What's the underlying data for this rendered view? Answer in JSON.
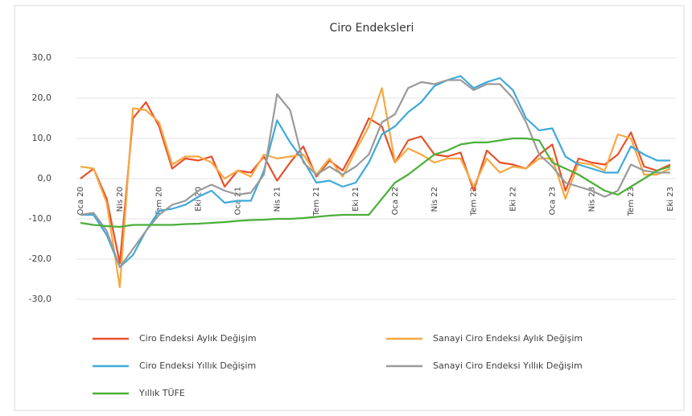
{
  "chart_data": {
    "type": "line",
    "title": "Ciro Endeksleri",
    "categories": [
      "Oca 20",
      null,
      null,
      "Nis 20",
      null,
      null,
      "Tem 20",
      null,
      null,
      "Eki 20",
      null,
      null,
      "Oca 21",
      null,
      null,
      "Nis 21",
      null,
      null,
      "Tem 21",
      null,
      null,
      "Eki 21",
      null,
      null,
      "Oca 22",
      null,
      null,
      "Nis 22",
      null,
      null,
      "Tem 22",
      null,
      null,
      "Eki 22",
      null,
      null,
      "Oca 23",
      null,
      null,
      "Nis 23",
      null,
      null,
      "Tem 23",
      null,
      null,
      "Eki 23"
    ],
    "series": [
      {
        "name": "Ciro Endeksi Aylık Değişim",
        "color": "#e8502a",
        "values": [
          0,
          2.5,
          -5,
          -21,
          15,
          19,
          13,
          2.5,
          5,
          4.5,
          5.5,
          -2,
          2,
          1.5,
          5.5,
          -0.5,
          4,
          8,
          0.5,
          4.5,
          2,
          8,
          15,
          13,
          4,
          9.5,
          10.5,
          6,
          5.5,
          6.5,
          -3,
          7,
          4,
          3.5,
          2.5,
          6,
          8.5,
          -3,
          5,
          4,
          3.5,
          6,
          11.5,
          3,
          2,
          3.5
        ]
      },
      {
        "name": "Sanayi Ciro Endeksi Aylık Değişim",
        "color": "#f5a842",
        "values": [
          3,
          2.5,
          -6,
          -27,
          17.5,
          17,
          14,
          3.5,
          5.5,
          5.5,
          4,
          0,
          2,
          0.5,
          6,
          5,
          5.5,
          6,
          1,
          5,
          0.5,
          7,
          13,
          22.5,
          4,
          7.5,
          6,
          4,
          5,
          5,
          -2,
          5,
          1.5,
          3,
          2.5,
          5,
          5,
          -5,
          4,
          3.5,
          2,
          11,
          10,
          1,
          1,
          2.5
        ]
      },
      {
        "name": "Ciro Endeksi Yıllık Değişim",
        "color": "#3fa9d9",
        "values": [
          -9,
          -9,
          -14,
          -22,
          -19,
          -13,
          -8,
          -7.5,
          -6.5,
          -4.5,
          -3,
          -6,
          -5.5,
          -5.5,
          2,
          14.5,
          9,
          4.5,
          -1,
          -0.5,
          -2,
          -1,
          4,
          11,
          13,
          16.5,
          19,
          23,
          24.5,
          25.5,
          22.5,
          24,
          25,
          22,
          15,
          12,
          12.5,
          5.5,
          3.5,
          2.5,
          1.5,
          1.5,
          8,
          6,
          4.5,
          4.5
        ]
      },
      {
        "name": "Sanayi Ciro Endeksi Yıllık Değişim",
        "color": "#9a9a9a",
        "values": [
          -9,
          -8.5,
          -13,
          -22,
          -17.5,
          -13,
          -9,
          -6.5,
          -5.5,
          -3,
          -1.5,
          -3,
          -4,
          -3.5,
          1,
          21,
          17,
          4,
          1,
          3,
          1,
          3,
          6,
          14,
          16,
          22.5,
          24,
          23.5,
          24.5,
          24.5,
          22,
          23.5,
          23.5,
          20,
          14,
          6,
          3,
          -1,
          -2,
          -3,
          -4.5,
          -3,
          3.5,
          2,
          1.5,
          1.5
        ]
      },
      {
        "name": "Yıllık TÜFE",
        "color": "#4caf3a",
        "values": [
          -11,
          -11.5,
          -11.8,
          -12,
          -11.5,
          -11.5,
          -11.5,
          -11.5,
          -11.3,
          -11.2,
          -11,
          -10.8,
          -10.5,
          -10.3,
          -10.2,
          -10,
          -10,
          -9.8,
          -9.5,
          -9.2,
          -9,
          -9,
          -9,
          -5,
          -1,
          1,
          3.5,
          6,
          7,
          8.5,
          9,
          9,
          9.5,
          10,
          10,
          9.5,
          4,
          2.5,
          1,
          -1,
          -3,
          -4,
          -2,
          0,
          2,
          3
        ]
      }
    ],
    "ylim": [
      -30,
      30
    ],
    "yticks": [
      {
        "value": -30,
        "label": "-30,0"
      },
      {
        "value": -20,
        "label": "-20,0"
      },
      {
        "value": -10,
        "label": "-10,0"
      },
      {
        "value": 0,
        "label": "0,0"
      },
      {
        "value": 10,
        "label": "10,0"
      },
      {
        "value": 20,
        "label": "20,0"
      },
      {
        "value": 30,
        "label": "30,0"
      }
    ],
    "grid": true,
    "legend": "bottom"
  }
}
